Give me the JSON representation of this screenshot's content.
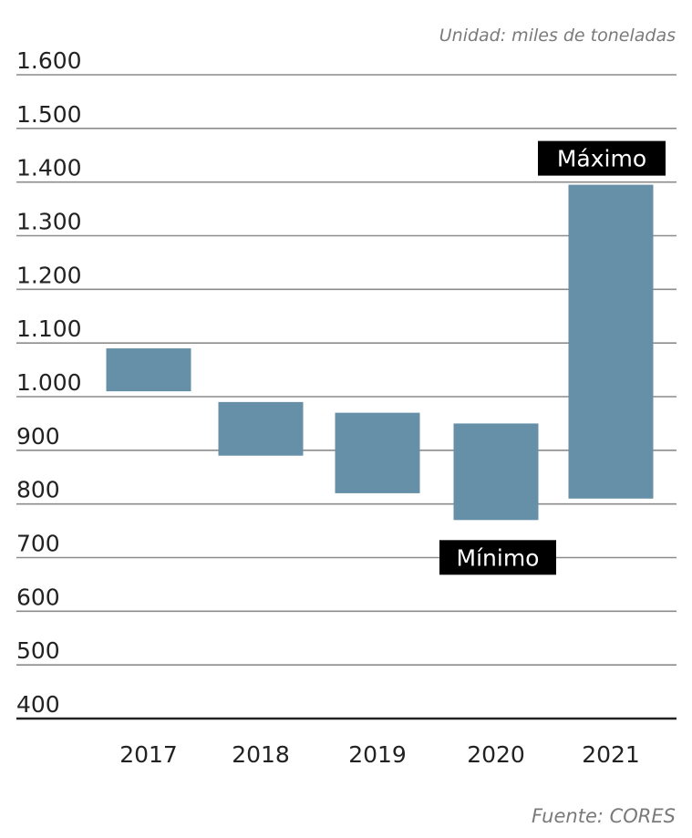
{
  "chart_data": {
    "type": "bar",
    "subtype": "floating-range",
    "unit_note": "Unidad: miles de toneladas",
    "source": "Fuente: CORES",
    "categories": [
      "2017",
      "2018",
      "2019",
      "2020",
      "2021"
    ],
    "ranges": [
      {
        "low": 1010,
        "high": 1090
      },
      {
        "low": 890,
        "high": 990
      },
      {
        "low": 820,
        "high": 970
      },
      {
        "low": 770,
        "high": 950
      },
      {
        "low": 810,
        "high": 1395
      }
    ],
    "y_ticks": [
      {
        "value": 400,
        "label": "400"
      },
      {
        "value": 500,
        "label": "500"
      },
      {
        "value": 600,
        "label": "600"
      },
      {
        "value": 700,
        "label": "700"
      },
      {
        "value": 800,
        "label": "800"
      },
      {
        "value": 900,
        "label": "900"
      },
      {
        "value": 1000,
        "label": "1.000"
      },
      {
        "value": 1100,
        "label": "1.100"
      },
      {
        "value": 1200,
        "label": "1.200"
      },
      {
        "value": 1300,
        "label": "1.300"
      },
      {
        "value": 1400,
        "label": "1.400"
      },
      {
        "value": 1500,
        "label": "1.500"
      },
      {
        "value": 1600,
        "label": "1.600"
      }
    ],
    "ylim": [
      400,
      1600
    ],
    "grid": true,
    "bar_color": "#6590a7",
    "annotations": [
      {
        "text": "Máximo",
        "category": "2021",
        "anchor": "high"
      },
      {
        "text": "Mínimo",
        "category": "2020",
        "anchor": "low"
      }
    ]
  }
}
